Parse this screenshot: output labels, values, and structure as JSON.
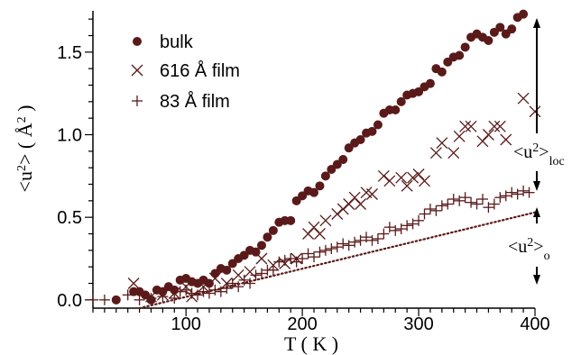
{
  "chart_data": {
    "type": "scatter",
    "title": "",
    "xlabel": "T ( K )",
    "ylabel_parts": {
      "open": "<u",
      "sup": "2",
      "close": "> ( Å",
      "sup2": "2",
      "end": " )"
    },
    "xlim": [
      20,
      400
    ],
    "ylim": [
      -0.05,
      1.75
    ],
    "xticks": [
      100,
      200,
      300,
      400
    ],
    "xtick_labels": [
      "100",
      "200",
      "300",
      "400"
    ],
    "yticks": [
      0.0,
      0.5,
      1.0,
      1.5
    ],
    "ytick_labels": [
      "0.0",
      "0.5",
      "1.0",
      "1.5"
    ],
    "grid": false,
    "legend_position": "top-left",
    "colors": {
      "data": "#5a1a1a",
      "axis": "#000000"
    },
    "series": [
      {
        "name": "bulk",
        "marker": "filled-circle",
        "points": [
          [
            40,
            0.0
          ],
          [
            55,
            0.05
          ],
          [
            60,
            0.05
          ],
          [
            65,
            0.03
          ],
          [
            70,
            0.0
          ],
          [
            75,
            0.06
          ],
          [
            80,
            0.05
          ],
          [
            85,
            0.08
          ],
          [
            90,
            0.06
          ],
          [
            95,
            0.12
          ],
          [
            100,
            0.13
          ],
          [
            105,
            0.11
          ],
          [
            110,
            0.1
          ],
          [
            115,
            0.12
          ],
          [
            120,
            0.1
          ],
          [
            125,
            0.16
          ],
          [
            130,
            0.19
          ],
          [
            135,
            0.18
          ],
          [
            140,
            0.22
          ],
          [
            145,
            0.25
          ],
          [
            150,
            0.27
          ],
          [
            155,
            0.3
          ],
          [
            160,
            0.29
          ],
          [
            165,
            0.33
          ],
          [
            170,
            0.38
          ],
          [
            175,
            0.42
          ],
          [
            180,
            0.47
          ],
          [
            185,
            0.48
          ],
          [
            190,
            0.48
          ],
          [
            195,
            0.6
          ],
          [
            200,
            0.63
          ],
          [
            205,
            0.66
          ],
          [
            210,
            0.65
          ],
          [
            215,
            0.69
          ],
          [
            220,
            0.75
          ],
          [
            225,
            0.79
          ],
          [
            230,
            0.82
          ],
          [
            235,
            0.85
          ],
          [
            240,
            0.92
          ],
          [
            245,
            0.95
          ],
          [
            250,
            0.97
          ],
          [
            255,
            1.01
          ],
          [
            260,
            1.02
          ],
          [
            265,
            1.06
          ],
          [
            270,
            1.13
          ],
          [
            275,
            1.15
          ],
          [
            280,
            1.15
          ],
          [
            285,
            1.2
          ],
          [
            290,
            1.24
          ],
          [
            295,
            1.25
          ],
          [
            300,
            1.26
          ],
          [
            305,
            1.29
          ],
          [
            310,
            1.31
          ],
          [
            315,
            1.4
          ],
          [
            320,
            1.38
          ],
          [
            325,
            1.44
          ],
          [
            330,
            1.47
          ],
          [
            335,
            1.48
          ],
          [
            340,
            1.53
          ],
          [
            345,
            1.59
          ],
          [
            350,
            1.61
          ],
          [
            355,
            1.59
          ],
          [
            360,
            1.57
          ],
          [
            365,
            1.62
          ],
          [
            370,
            1.65
          ],
          [
            375,
            1.61
          ],
          [
            380,
            1.64
          ],
          [
            385,
            1.71
          ],
          [
            390,
            1.73
          ]
        ]
      },
      {
        "name": "616 Å film",
        "marker": "x",
        "points": [
          [
            55,
            0.1
          ],
          [
            70,
            0.02
          ],
          [
            80,
            0.03
          ],
          [
            90,
            0.04
          ],
          [
            100,
            0.08
          ],
          [
            105,
            0.02
          ],
          [
            115,
            0.08
          ],
          [
            125,
            0.13
          ],
          [
            135,
            0.1
          ],
          [
            145,
            0.15
          ],
          [
            155,
            0.17
          ],
          [
            165,
            0.25
          ],
          [
            175,
            0.21
          ],
          [
            185,
            0.22
          ],
          [
            195,
            0.25
          ],
          [
            205,
            0.4
          ],
          [
            210,
            0.44
          ],
          [
            215,
            0.4
          ],
          [
            220,
            0.48
          ],
          [
            230,
            0.52
          ],
          [
            235,
            0.55
          ],
          [
            240,
            0.58
          ],
          [
            245,
            0.62
          ],
          [
            250,
            0.58
          ],
          [
            255,
            0.65
          ],
          [
            260,
            0.64
          ],
          [
            270,
            0.75
          ],
          [
            275,
            0.72
          ],
          [
            285,
            0.74
          ],
          [
            290,
            0.69
          ],
          [
            295,
            0.74
          ],
          [
            300,
            0.76
          ],
          [
            305,
            0.72
          ],
          [
            315,
            0.89
          ],
          [
            320,
            0.95
          ],
          [
            330,
            0.89
          ],
          [
            335,
            0.99
          ],
          [
            340,
            1.05
          ],
          [
            345,
            1.05
          ],
          [
            355,
            0.96
          ],
          [
            360,
            1.0
          ],
          [
            365,
            1.05
          ],
          [
            370,
            1.05
          ],
          [
            375,
            0.97
          ],
          [
            390,
            1.22
          ],
          [
            400,
            1.14
          ]
        ]
      },
      {
        "name": "83 Å film",
        "marker": "plus",
        "points": [
          [
            20,
            0.0
          ],
          [
            30,
            0.0
          ],
          [
            50,
            0.03
          ],
          [
            60,
            0.0
          ],
          [
            70,
            0.01
          ],
          [
            80,
            0.02
          ],
          [
            90,
            0.01
          ],
          [
            95,
            0.05
          ],
          [
            100,
            0.06
          ],
          [
            105,
            0.04
          ],
          [
            110,
            0.03
          ],
          [
            115,
            0.05
          ],
          [
            120,
            0.04
          ],
          [
            125,
            0.06
          ],
          [
            130,
            0.05
          ],
          [
            135,
            0.07
          ],
          [
            140,
            0.1
          ],
          [
            145,
            0.08
          ],
          [
            150,
            0.12
          ],
          [
            155,
            0.1
          ],
          [
            160,
            0.15
          ],
          [
            165,
            0.16
          ],
          [
            170,
            0.18
          ],
          [
            175,
            0.18
          ],
          [
            180,
            0.23
          ],
          [
            185,
            0.24
          ],
          [
            190,
            0.25
          ],
          [
            195,
            0.23
          ],
          [
            200,
            0.25
          ],
          [
            205,
            0.28
          ],
          [
            210,
            0.26
          ],
          [
            215,
            0.29
          ],
          [
            220,
            0.3
          ],
          [
            225,
            0.31
          ],
          [
            230,
            0.32
          ],
          [
            235,
            0.34
          ],
          [
            240,
            0.33
          ],
          [
            245,
            0.35
          ],
          [
            250,
            0.36
          ],
          [
            255,
            0.38
          ],
          [
            260,
            0.36
          ],
          [
            265,
            0.37
          ],
          [
            270,
            0.4
          ],
          [
            275,
            0.44
          ],
          [
            280,
            0.42
          ],
          [
            285,
            0.43
          ],
          [
            290,
            0.45
          ],
          [
            295,
            0.46
          ],
          [
            300,
            0.48
          ],
          [
            305,
            0.52
          ],
          [
            310,
            0.55
          ],
          [
            315,
            0.54
          ],
          [
            320,
            0.57
          ],
          [
            325,
            0.58
          ],
          [
            330,
            0.61
          ],
          [
            335,
            0.6
          ],
          [
            340,
            0.62
          ],
          [
            345,
            0.59
          ],
          [
            350,
            0.58
          ],
          [
            355,
            0.61
          ],
          [
            360,
            0.56
          ],
          [
            365,
            0.58
          ],
          [
            370,
            0.62
          ],
          [
            375,
            0.63
          ],
          [
            380,
            0.65
          ],
          [
            385,
            0.64
          ],
          [
            390,
            0.66
          ],
          [
            395,
            0.65
          ]
        ]
      }
    ],
    "fit_line": {
      "style": "dotted",
      "from": [
        60,
        -0.05
      ],
      "to": [
        400,
        0.53
      ]
    },
    "annotations": [
      {
        "id": "loc",
        "base": "<u",
        "sup": "2",
        "close": ">",
        "sub": "loc"
      },
      {
        "id": "o",
        "base": "<u",
        "sup": "2",
        "close": ">",
        "sub": "o"
      }
    ]
  }
}
